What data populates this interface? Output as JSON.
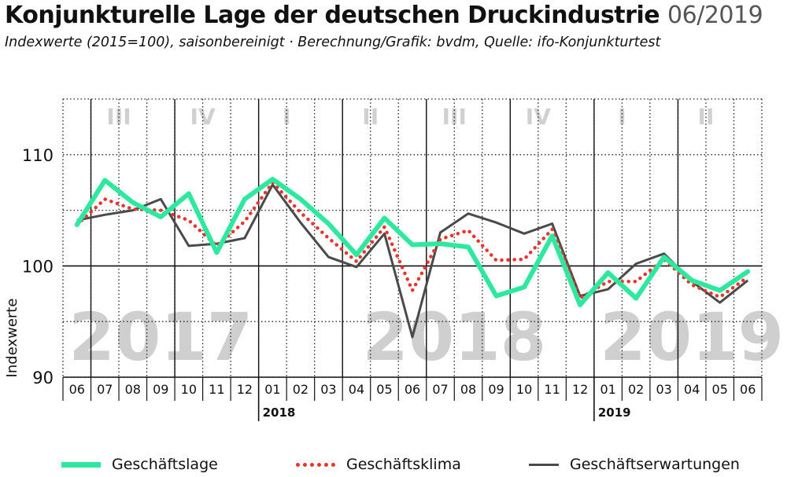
{
  "title": "Konjunkturelle Lage der deutschen Druckindustrie",
  "title_date": "06/2019",
  "subtitle": "Indexwerte (2015=100), saisonbereinigt · Berechnung/Grafik: bvdm, Quelle: ifo-Konjunkturtest",
  "colors": {
    "lage": "#2ee8a0",
    "klima": "#e8352a",
    "erwartungen": "#4a4a4a",
    "watermark": "#cfcfcf",
    "quarter": "#d0d0d0"
  },
  "chart_data": {
    "type": "line",
    "ylabel": "Indexwerte",
    "ylim": [
      90,
      115
    ],
    "yticks": [
      90,
      100,
      110
    ],
    "x": [
      "06",
      "07",
      "08",
      "09",
      "10",
      "11",
      "12",
      "01",
      "02",
      "03",
      "04",
      "05",
      "06",
      "07",
      "08",
      "09",
      "10",
      "11",
      "12",
      "01",
      "02",
      "03",
      "04",
      "05",
      "06"
    ],
    "year_markers": [
      {
        "label": "2018",
        "at_index": 7
      },
      {
        "label": "2019",
        "at_index": 19
      }
    ],
    "watermarks": [
      "2017",
      "2018",
      "2019"
    ],
    "quarters": [
      "III",
      "IV",
      "I",
      "II",
      "III",
      "IV",
      "I",
      "II"
    ],
    "series": [
      {
        "name": "Geschäftslage",
        "style": "solid-thick",
        "values": [
          103.7,
          107.7,
          105.7,
          104.4,
          106.5,
          101.2,
          106.0,
          107.8,
          106.0,
          103.8,
          101.0,
          104.3,
          101.9,
          102.0,
          101.7,
          97.3,
          98.1,
          102.7,
          96.5,
          99.4,
          97.1,
          100.8,
          98.7,
          97.8,
          99.5
        ]
      },
      {
        "name": "Geschäftsklima",
        "style": "dotted",
        "values": [
          103.7,
          106.0,
          105.1,
          105.0,
          104.1,
          101.8,
          104.0,
          107.5,
          104.8,
          102.5,
          100.4,
          103.5,
          97.8,
          102.4,
          103.2,
          100.5,
          100.6,
          103.3,
          97.1,
          98.6,
          98.6,
          100.6,
          98.3,
          97.2,
          99.0
        ]
      },
      {
        "name": "Geschäftserwartungen",
        "style": "solid-thin",
        "values": [
          104.1,
          104.6,
          105.0,
          106.0,
          101.8,
          102.0,
          102.5,
          107.3,
          103.9,
          100.8,
          99.9,
          102.9,
          93.6,
          103.0,
          104.7,
          103.9,
          102.9,
          103.8,
          97.3,
          97.9,
          100.2,
          101.1,
          98.6,
          96.7,
          98.7
        ]
      }
    ]
  }
}
